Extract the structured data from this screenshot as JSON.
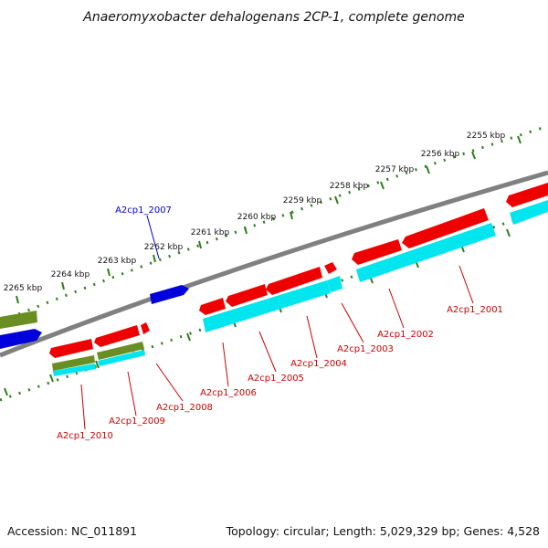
{
  "title": "Anaeromyxobacter dehalogenans 2CP-1, complete genome",
  "footer": {
    "accession": "Accession: NC_011891",
    "summary": "Topology: circular; Length: 5,029,329 bp; Genes: 4,528"
  },
  "colors": {
    "backbone": "#808080",
    "ticks": "#2e7d1e",
    "red": "#ee0000",
    "blue": "#0000dd",
    "olive": "#6b8e23",
    "cyan": "#00e5ee",
    "label_red": "#cc0000",
    "label_blue": "#0000cc"
  },
  "ticks": [
    {
      "label": "2255 kbp"
    },
    {
      "label": "2256 kbp"
    },
    {
      "label": "2257 kbp"
    },
    {
      "label": "2258 kbp"
    },
    {
      "label": "2259 kbp"
    },
    {
      "label": "2260 kbp"
    },
    {
      "label": "2261 kbp"
    },
    {
      "label": "2262 kbp"
    },
    {
      "label": "2263 kbp"
    },
    {
      "label": "2264 kbp"
    },
    {
      "label": "2265 kbp"
    }
  ],
  "gene_labels": [
    {
      "id": "A2cp1_2007",
      "color": "blue"
    },
    {
      "id": "A2cp1_2001",
      "color": "red"
    },
    {
      "id": "A2cp1_2002",
      "color": "red"
    },
    {
      "id": "A2cp1_2003",
      "color": "red"
    },
    {
      "id": "A2cp1_2004",
      "color": "red"
    },
    {
      "id": "A2cp1_2005",
      "color": "red"
    },
    {
      "id": "A2cp1_2006",
      "color": "red"
    },
    {
      "id": "A2cp1_2008",
      "color": "red"
    },
    {
      "id": "A2cp1_2009",
      "color": "red"
    },
    {
      "id": "A2cp1_2010",
      "color": "red"
    }
  ]
}
